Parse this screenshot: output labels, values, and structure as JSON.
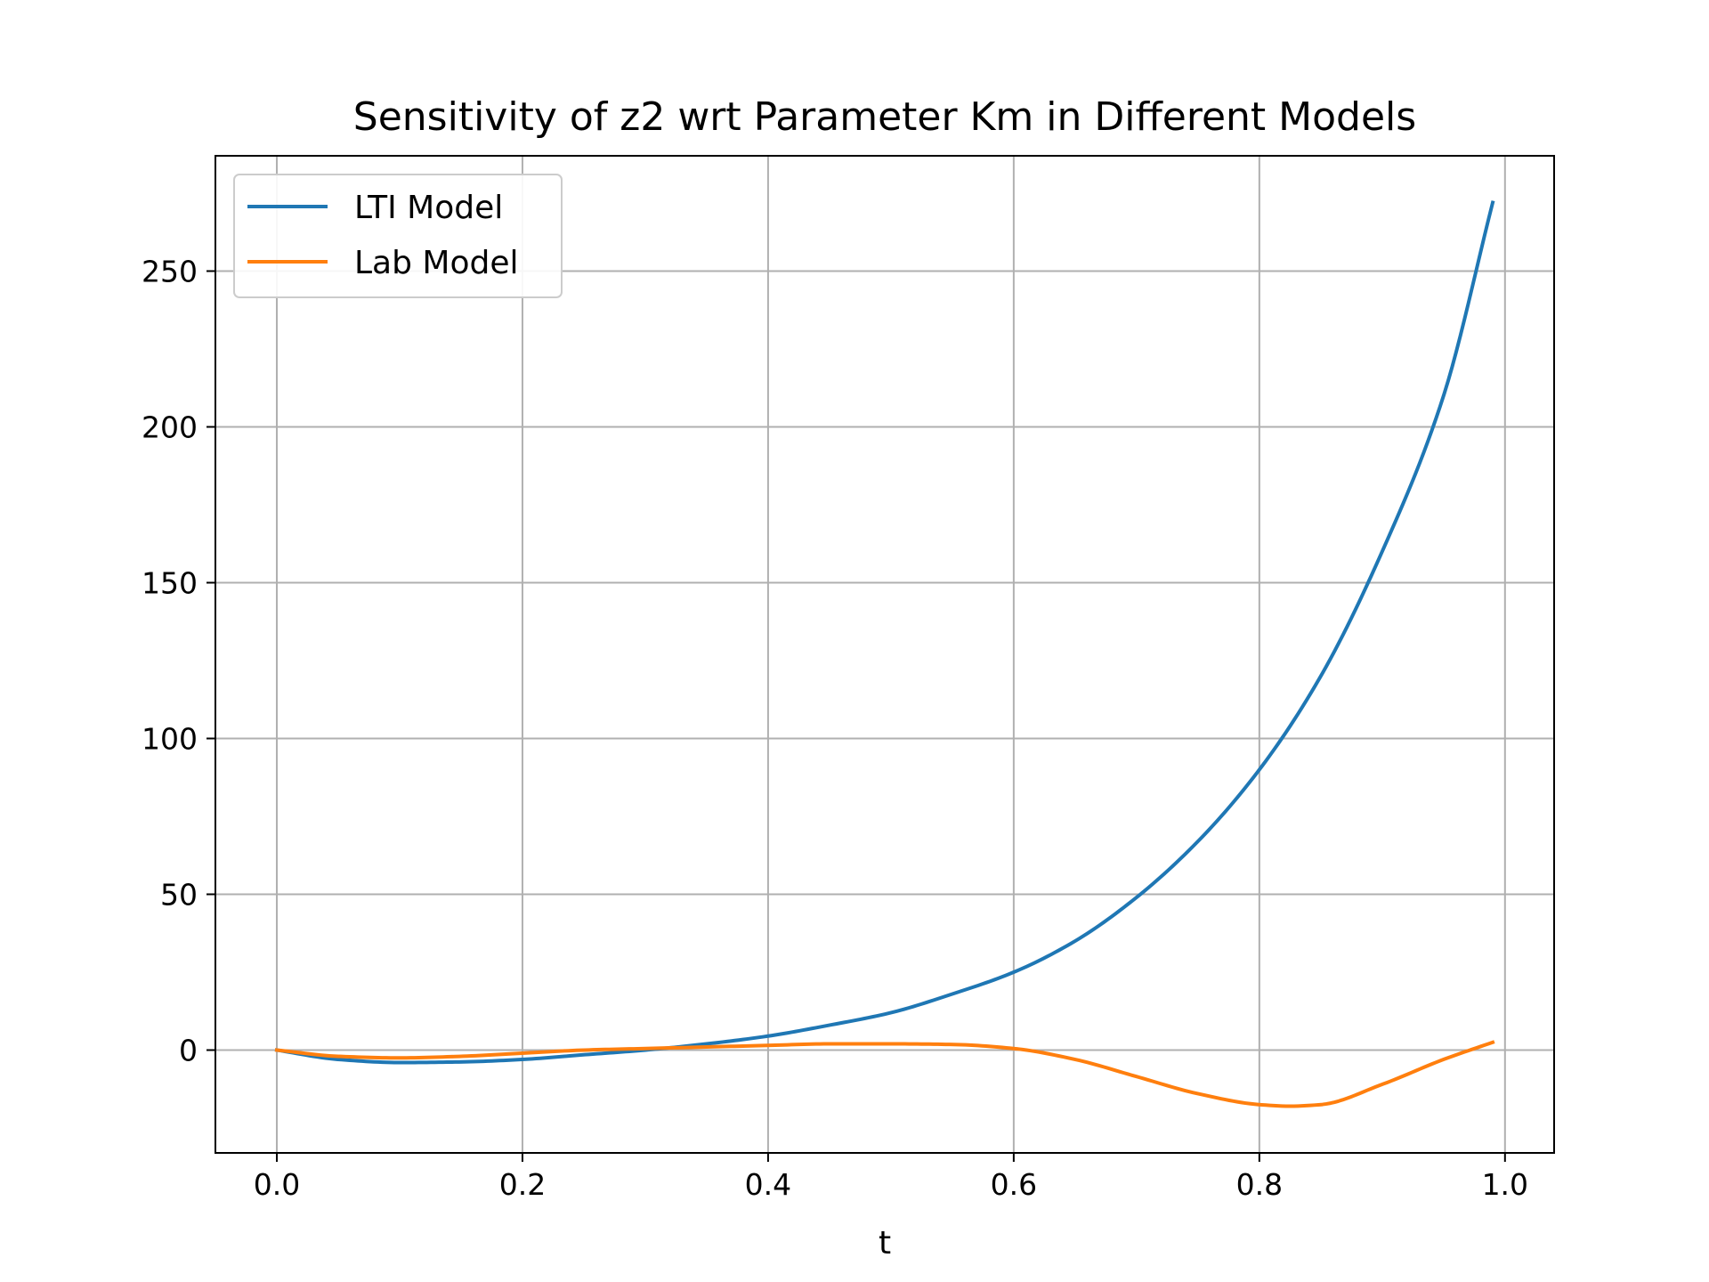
{
  "chart_data": {
    "type": "line",
    "title": "Sensitivity of z2 wrt Parameter Km in Different Models",
    "xlabel": "t",
    "ylabel": "",
    "xlim": [
      -0.05,
      1.04
    ],
    "ylim": [
      -33,
      287
    ],
    "x_ticks": [
      0.0,
      0.2,
      0.4,
      0.6,
      0.8,
      1.0
    ],
    "x_tick_labels": [
      "0.0",
      "0.2",
      "0.4",
      "0.6",
      "0.8",
      "1.0"
    ],
    "y_ticks": [
      0,
      50,
      100,
      150,
      200,
      250
    ],
    "y_tick_labels": [
      "0",
      "50",
      "100",
      "150",
      "200",
      "250"
    ],
    "grid": true,
    "legend_position": "top-left",
    "series": [
      {
        "name": "LTI Model",
        "color": "#1f77b4",
        "x": [
          0.0,
          0.05,
          0.1,
          0.15,
          0.2,
          0.25,
          0.3,
          0.35,
          0.4,
          0.45,
          0.5,
          0.55,
          0.6,
          0.65,
          0.7,
          0.75,
          0.8,
          0.85,
          0.9,
          0.95,
          0.99
        ],
        "y": [
          0,
          -3,
          -4,
          -3.8,
          -3,
          -1.5,
          0,
          2,
          4.5,
          8,
          12,
          18,
          25,
          35,
          49,
          67,
          90,
          120,
          160,
          210,
          272
        ]
      },
      {
        "name": "Lab Model",
        "color": "#ff7f0e",
        "x": [
          0.0,
          0.05,
          0.1,
          0.15,
          0.2,
          0.25,
          0.3,
          0.35,
          0.4,
          0.45,
          0.5,
          0.55,
          0.6,
          0.65,
          0.7,
          0.75,
          0.8,
          0.825,
          0.85,
          0.9,
          0.95,
          0.99
        ],
        "y": [
          0,
          -2,
          -2.5,
          -2,
          -1,
          0,
          0.5,
          1,
          1.5,
          2,
          2,
          1.8,
          0.5,
          -3,
          -8.5,
          -14,
          -17.5,
          -18,
          -17.5,
          -11,
          -3,
          2.5
        ]
      }
    ]
  }
}
